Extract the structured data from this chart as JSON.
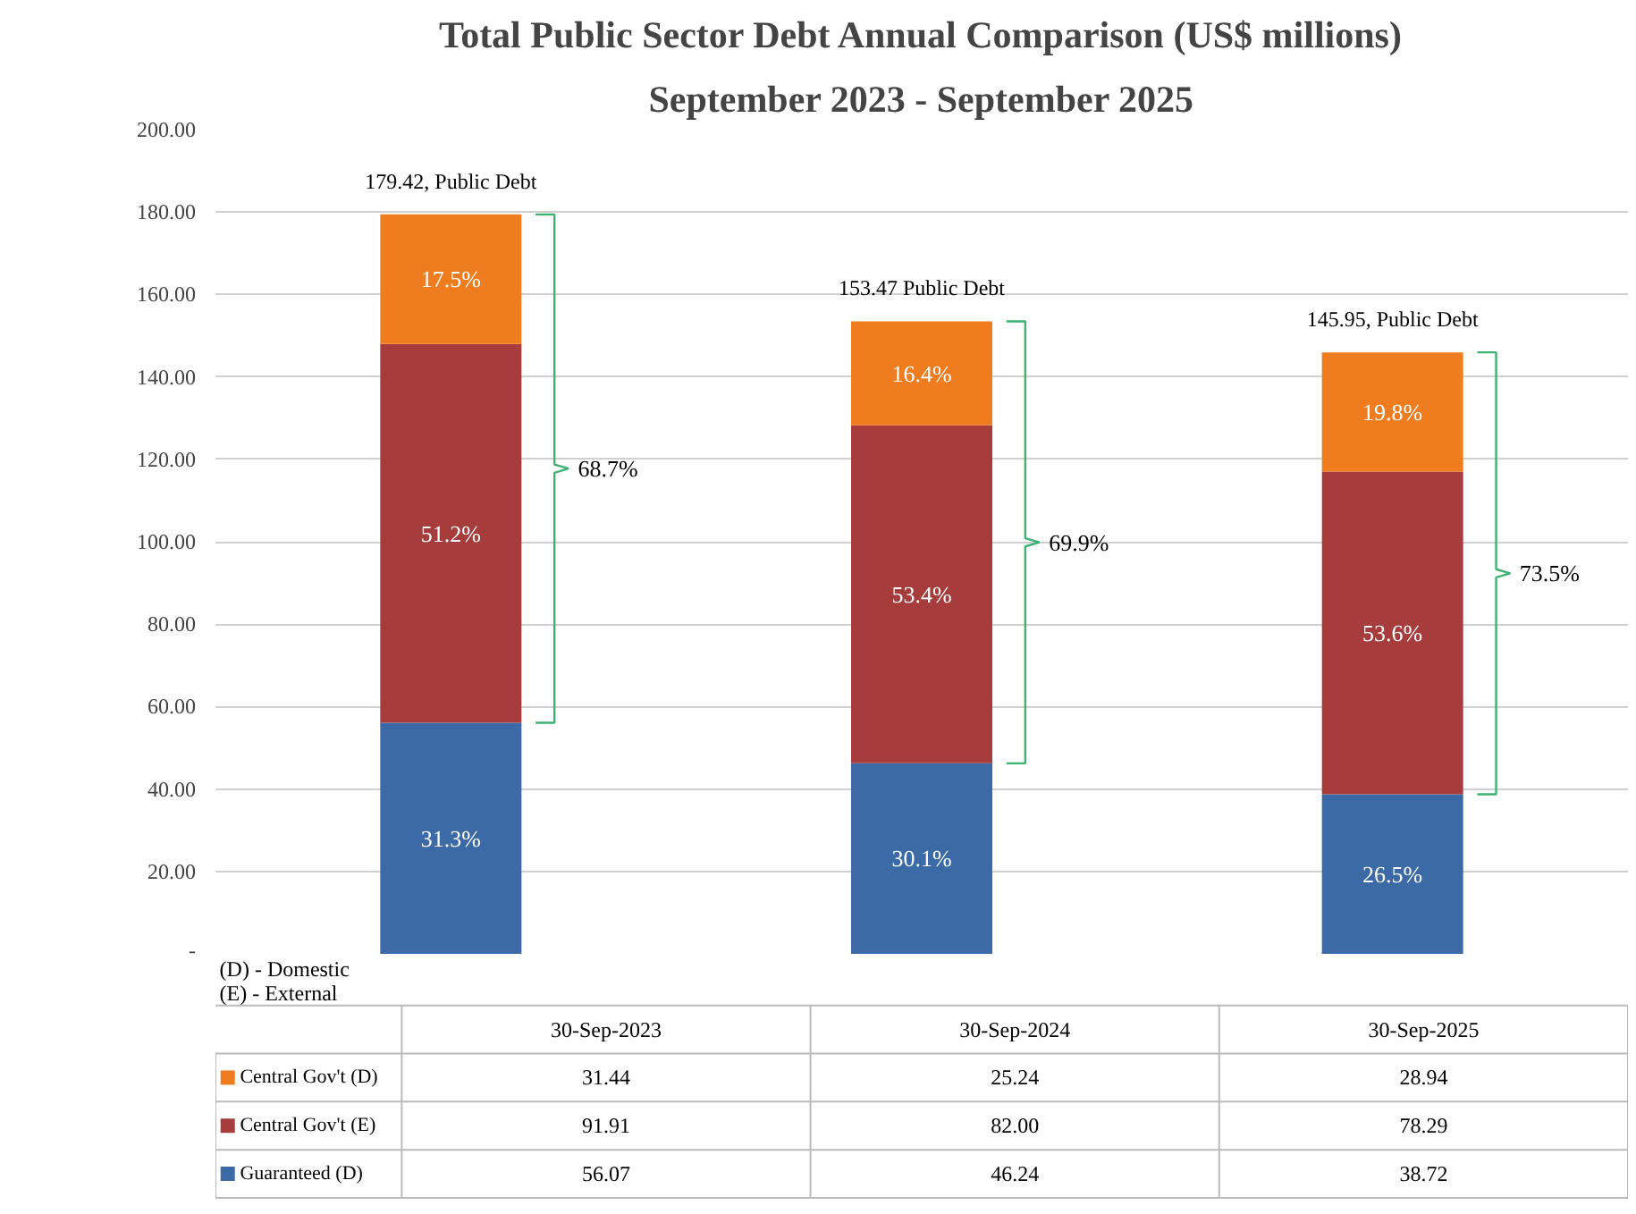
{
  "chart_data": {
    "type": "bar",
    "stacked": true,
    "title": "Total Public Sector Debt Annual Comparison (US$ millions)",
    "subtitle": "September 2023 - September 2025",
    "categories": [
      "30-Sep-2023",
      "30-Sep-2024",
      "30-Sep-2025"
    ],
    "series": [
      {
        "name": "Guaranteed (D)",
        "color": "#3b6aa6",
        "values": [
          56.07,
          46.24,
          38.72
        ],
        "value_labels": [
          "56.07",
          "46.24",
          "38.72"
        ]
      },
      {
        "name": "Central Gov't (E)",
        "color": "#a63c3c",
        "values": [
          91.91,
          82.0,
          78.29
        ],
        "value_labels": [
          "91.91",
          "82.00",
          "78.29"
        ]
      },
      {
        "name": "Central Gov't (D)",
        "color": "#ef7d1f",
        "values": [
          31.44,
          25.24,
          28.94
        ],
        "value_labels": [
          "31.44",
          "25.24",
          "28.94"
        ]
      }
    ],
    "totals": [
      "179.42, Public Debt",
      "153.47 Public Debt",
      "145.95, Public Debt"
    ],
    "ylim": [
      0,
      200
    ],
    "yticks": [
      {
        "value": 0,
        "label": "-"
      },
      {
        "value": 20,
        "label": "20.00"
      },
      {
        "value": 40,
        "label": "40.00"
      },
      {
        "value": 60,
        "label": "60.00"
      },
      {
        "value": 80,
        "label": "80.00"
      },
      {
        "value": 100,
        "label": "100.00"
      },
      {
        "value": 120,
        "label": "120.00"
      },
      {
        "value": 140,
        "label": "140.00"
      },
      {
        "value": 160,
        "label": "160.00"
      },
      {
        "value": 180,
        "label": "180.00"
      },
      {
        "value": 200,
        "label": "200.00"
      }
    ],
    "grid": "y",
    "legend": "bottom",
    "annotations": [
      "31.3%",
      "30.1%",
      "26.5%",
      "51.2%",
      "53.4%",
      "53.6%",
      "17.5%",
      "16.4%",
      "19.8%",
      "68.7%",
      "69.9%",
      "73.5%",
      "(D) - Domestic",
      "(E) - External"
    ]
  }
}
